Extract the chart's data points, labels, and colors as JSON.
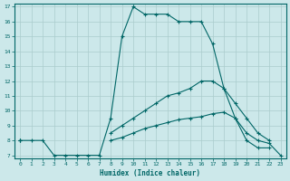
{
  "xlabel": "Humidex (Indice chaleur)",
  "ylabel": "",
  "xlim": [
    -0.5,
    23.5
  ],
  "ylim": [
    6.8,
    17.2
  ],
  "yticks": [
    7,
    8,
    9,
    10,
    11,
    12,
    13,
    14,
    15,
    16,
    17
  ],
  "xticks": [
    0,
    1,
    2,
    3,
    4,
    5,
    6,
    7,
    8,
    9,
    10,
    11,
    12,
    13,
    14,
    15,
    16,
    17,
    18,
    19,
    20,
    21,
    22,
    23
  ],
  "bg_color": "#cce8ea",
  "grid_color": "#aacccc",
  "line_color": "#006666",
  "line1_x": [
    0,
    1,
    2,
    3,
    4,
    5,
    6,
    7,
    8,
    9,
    10,
    11,
    12,
    13,
    14,
    15,
    16,
    17,
    18,
    19,
    20,
    21,
    22
  ],
  "line1_y": [
    8.0,
    8.0,
    8.0,
    7.0,
    7.0,
    7.0,
    7.0,
    7.0,
    9.5,
    15.0,
    17.0,
    16.5,
    16.5,
    16.5,
    16.0,
    16.0,
    16.0,
    14.5,
    11.5,
    9.5,
    8.0,
    7.5,
    7.5
  ],
  "line2_x": [
    0,
    8,
    9,
    10,
    11,
    12,
    13,
    14,
    15,
    16,
    17,
    18,
    19,
    20,
    21,
    22
  ],
  "line2_y": [
    8.0,
    8.5,
    9.0,
    9.5,
    10.0,
    10.5,
    11.0,
    11.2,
    11.5,
    12.0,
    12.0,
    11.5,
    10.5,
    9.5,
    8.5,
    8.0
  ],
  "line3_x": [
    0,
    8,
    9,
    10,
    11,
    12,
    13,
    14,
    15,
    16,
    17,
    18,
    19,
    20,
    21,
    22,
    23
  ],
  "line3_y": [
    8.0,
    8.0,
    8.2,
    8.5,
    8.8,
    9.0,
    9.2,
    9.4,
    9.5,
    9.6,
    9.8,
    9.9,
    9.5,
    8.5,
    8.0,
    7.8,
    7.0
  ]
}
